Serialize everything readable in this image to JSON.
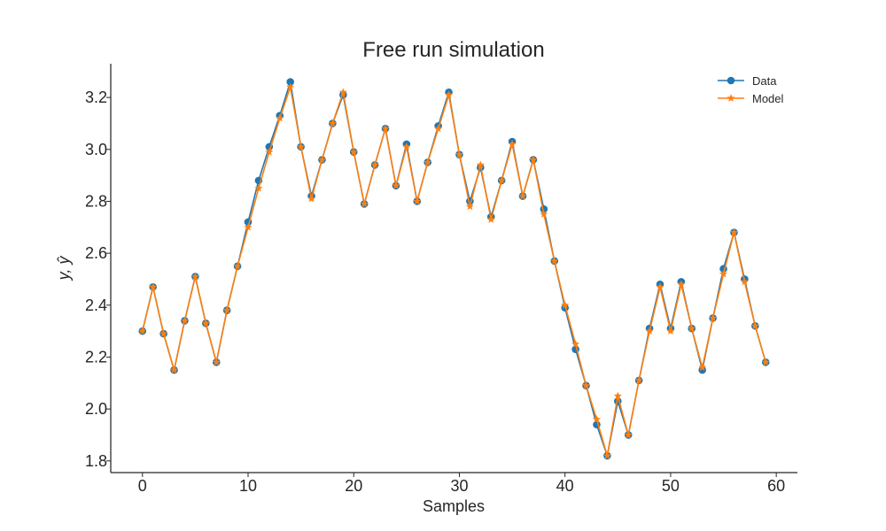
{
  "chart_data": {
    "type": "line",
    "title": "Free run simulation",
    "xlabel": "Samples",
    "ylabel": "y, ŷ",
    "xlim": [
      -3,
      62
    ],
    "ylim": [
      1.755,
      3.33
    ],
    "xticks": [
      0,
      10,
      20,
      30,
      40,
      50,
      60
    ],
    "yticks": [
      1.8,
      2.0,
      2.2,
      2.4,
      2.6,
      2.8,
      3.0,
      3.2
    ],
    "ytick_labels": [
      "1.8",
      "2.0",
      "2.2",
      "2.4",
      "2.6",
      "2.8",
      "3.0",
      "3.2"
    ],
    "grid": false,
    "legend_position": "top-right",
    "x": [
      0,
      1,
      2,
      3,
      4,
      5,
      6,
      7,
      8,
      9,
      10,
      11,
      12,
      13,
      14,
      15,
      16,
      17,
      18,
      19,
      20,
      21,
      22,
      23,
      24,
      25,
      26,
      27,
      28,
      29,
      30,
      31,
      32,
      33,
      34,
      35,
      36,
      37,
      38,
      39,
      40,
      41,
      42,
      43,
      44,
      45,
      46,
      47,
      48,
      49,
      50,
      51,
      52,
      53,
      54,
      55,
      56,
      57,
      58,
      59
    ],
    "series": [
      {
        "name": "Data",
        "color": "#1f77b4",
        "marker": "circle",
        "values": [
          2.3,
          2.47,
          2.29,
          2.15,
          2.34,
          2.51,
          2.33,
          2.18,
          2.38,
          2.55,
          2.72,
          2.88,
          3.01,
          3.13,
          3.26,
          3.01,
          2.82,
          2.96,
          3.1,
          3.21,
          2.99,
          2.79,
          2.94,
          3.08,
          2.86,
          3.02,
          2.8,
          2.95,
          3.09,
          3.22,
          2.98,
          2.8,
          2.93,
          2.74,
          2.88,
          3.03,
          2.82,
          2.96,
          2.77,
          2.57,
          2.39,
          2.23,
          2.09,
          1.94,
          1.82,
          2.03,
          1.9,
          2.11,
          2.31,
          2.48,
          2.31,
          2.49,
          2.31,
          2.15,
          2.35,
          2.54,
          2.68,
          2.5,
          2.32,
          2.18
        ]
      },
      {
        "name": "Model",
        "color": "#ff7f0e",
        "marker": "star",
        "values": [
          2.3,
          2.47,
          2.29,
          2.15,
          2.34,
          2.51,
          2.33,
          2.18,
          2.38,
          2.55,
          2.7,
          2.85,
          2.99,
          3.12,
          3.24,
          3.01,
          2.81,
          2.96,
          3.1,
          3.22,
          2.99,
          2.79,
          2.94,
          3.08,
          2.86,
          3.01,
          2.8,
          2.95,
          3.08,
          3.21,
          2.98,
          2.78,
          2.94,
          2.73,
          2.88,
          3.02,
          2.82,
          2.96,
          2.75,
          2.57,
          2.4,
          2.25,
          2.09,
          1.96,
          1.82,
          2.05,
          1.9,
          2.11,
          2.3,
          2.47,
          2.3,
          2.48,
          2.31,
          2.16,
          2.35,
          2.52,
          2.68,
          2.49,
          2.32,
          2.18
        ]
      }
    ]
  }
}
